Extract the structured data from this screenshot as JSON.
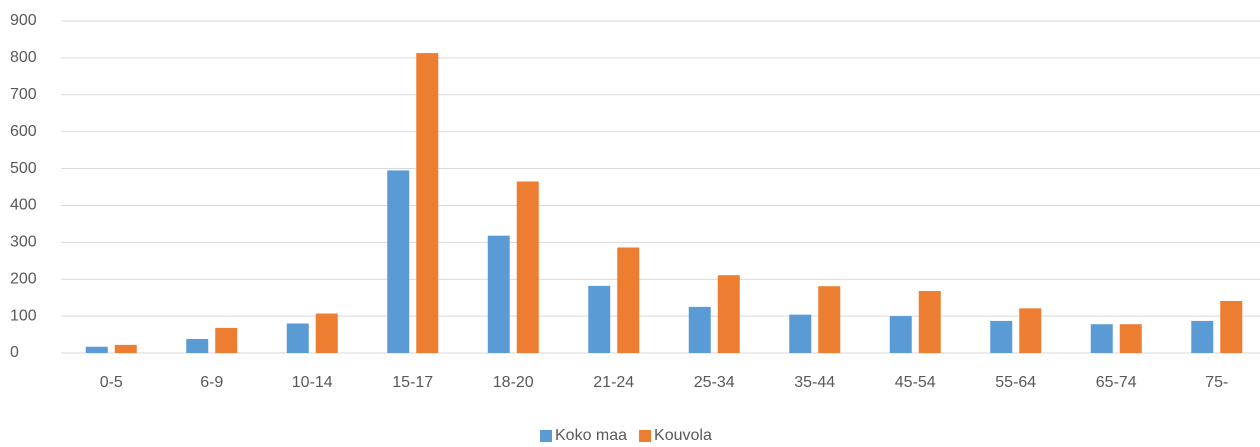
{
  "chart_data": {
    "type": "bar",
    "categories": [
      "0-5",
      "6-9",
      "10-14",
      "15-17",
      "18-20",
      "21-24",
      "25-34",
      "35-44",
      "45-54",
      "55-64",
      "65-74",
      "75-"
    ],
    "series": [
      {
        "name": "Koko maa",
        "color": "#5b9bd5",
        "values": [
          17,
          38,
          80,
          495,
          318,
          182,
          125,
          104,
          100,
          87,
          78,
          87
        ]
      },
      {
        "name": "Kouvola",
        "color": "#ed7d31",
        "values": [
          22,
          68,
          107,
          813,
          465,
          286,
          211,
          181,
          168,
          121,
          78,
          141
        ]
      }
    ],
    "ylim": [
      0,
      900
    ],
    "yticks": [
      0,
      100,
      200,
      300,
      400,
      500,
      600,
      700,
      800,
      900
    ],
    "grid": true,
    "legend": "bottom"
  }
}
